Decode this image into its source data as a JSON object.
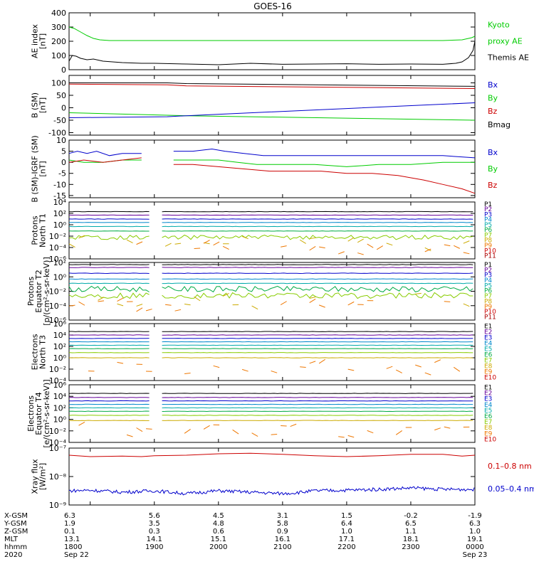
{
  "title": "GOES-16",
  "colors": {
    "black": "#000000",
    "blue": "#0000cc",
    "green": "#00cc00",
    "red": "#cc0000",
    "P": [
      "#000000",
      "#660099",
      "#0000cc",
      "#0088cc",
      "#00aaaa",
      "#00aa44",
      "#88cc00",
      "#ccaa00",
      "#ee7700",
      "#cc0000",
      "#aa0000"
    ]
  },
  "chart_data": [
    {
      "id": "ae",
      "type": "line",
      "ylabel": [
        "AE index",
        "[nT]"
      ],
      "yscale": "linear",
      "ylim": [
        0,
        400
      ],
      "yticks": [
        0,
        100,
        200,
        300,
        400
      ],
      "yticklabels": [
        "0",
        "100",
        "200",
        "300",
        "400"
      ],
      "legend": [
        {
          "text": "Kyoto",
          "color": "green"
        },
        {
          "text": "proxy AE",
          "color": "green"
        },
        {
          "text": "Themis AE",
          "color": "black"
        }
      ],
      "series": [
        {
          "name": "Kyoto proxy AE",
          "color": "green",
          "x": [
            17.67,
            17.75,
            17.85,
            17.95,
            18.05,
            18.15,
            18.3,
            18.5,
            19,
            19.5,
            20,
            20.5,
            21,
            21.5,
            22,
            22.5,
            23,
            23.5,
            23.8,
            23.95,
            24
          ],
          "y": [
            300,
            290,
            265,
            240,
            220,
            210,
            205,
            205,
            205,
            205,
            205,
            205,
            205,
            205,
            205,
            205,
            205,
            205,
            210,
            225,
            235
          ]
        },
        {
          "name": "Themis AE",
          "color": "black",
          "x": [
            17.67,
            17.72,
            17.78,
            17.85,
            17.95,
            18.05,
            18.2,
            18.35,
            18.5,
            18.8,
            19,
            19.5,
            20,
            20.5,
            21,
            21.5,
            22,
            22.5,
            23,
            23.5,
            23.7,
            23.8,
            23.9,
            23.97,
            24
          ],
          "y": [
            60,
            100,
            95,
            80,
            70,
            75,
            60,
            55,
            50,
            45,
            45,
            40,
            35,
            45,
            38,
            40,
            42,
            38,
            40,
            38,
            45,
            55,
            85,
            135,
            200
          ]
        }
      ]
    },
    {
      "id": "bsm",
      "type": "line",
      "ylabel": [
        "B (SM)",
        "[nT]"
      ],
      "yscale": "linear",
      "ylim": [
        -110,
        130
      ],
      "yticks": [
        -100,
        -50,
        0,
        50,
        100
      ],
      "yticklabels": [
        "-100",
        "-50",
        "0",
        "50",
        "100"
      ],
      "legend": [
        {
          "text": "Bx",
          "color": "blue"
        },
        {
          "text": "By",
          "color": "green"
        },
        {
          "text": "Bz",
          "color": "red"
        },
        {
          "text": "Bmag",
          "color": "black"
        }
      ],
      "series": [
        {
          "name": "Bmag",
          "color": "black",
          "x": [
            17.67,
            19.2,
            19.5,
            24
          ],
          "y": [
            100,
            100,
            97,
            86
          ]
        },
        {
          "name": "Bz",
          "color": "red",
          "x": [
            17.67,
            19.2,
            19.5,
            24
          ],
          "y": [
            95,
            92,
            88,
            77
          ]
        },
        {
          "name": "By",
          "color": "green",
          "x": [
            17.67,
            19.2,
            19.5,
            24
          ],
          "y": [
            -20,
            -30,
            -32,
            -50
          ]
        },
        {
          "name": "Bx",
          "color": "blue",
          "x": [
            17.67,
            19.2,
            19.5,
            24
          ],
          "y": [
            -40,
            -36,
            -32,
            20
          ]
        }
      ]
    },
    {
      "id": "digrf",
      "type": "line",
      "ylabel": [
        "B (SM)-IGRF (SM)",
        "[nT]"
      ],
      "yscale": "linear",
      "ylim": [
        -16,
        10
      ],
      "yticks": [
        -15,
        -10,
        -5,
        0,
        5,
        10
      ],
      "yticklabels": [
        "-15",
        "-10",
        "-5",
        "0",
        "5",
        "10"
      ],
      "legend": [
        {
          "text": "Bx",
          "color": "blue"
        },
        {
          "text": "By",
          "color": "green"
        },
        {
          "text": "Bz",
          "color": "red"
        }
      ],
      "series": [
        {
          "name": "Bx",
          "color": "blue",
          "x": [
            17.67,
            17.8,
            17.95,
            18.1,
            18.3,
            18.5,
            18.8,
            19.0,
            19.3,
            19.6,
            19.9,
            20.1,
            20.4,
            20.7,
            21,
            21.5,
            22,
            22.5,
            23,
            23.5,
            24
          ],
          "y": [
            4,
            5,
            4,
            5,
            3,
            4,
            4,
            5,
            5,
            5,
            6,
            5,
            4,
            3,
            3,
            3,
            3,
            3,
            3,
            3,
            2
          ]
        },
        {
          "name": "By",
          "color": "green",
          "x": [
            17.67,
            17.9,
            18.2,
            18.5,
            18.8,
            19.0,
            19.3,
            19.6,
            20.0,
            20.3,
            20.6,
            21,
            21.5,
            22,
            22.5,
            23,
            23.5,
            24
          ],
          "y": [
            1,
            0,
            0,
            1,
            1,
            2,
            1,
            1,
            1,
            0,
            -1,
            -1,
            -1,
            -2,
            -1,
            -1,
            0,
            0
          ]
        },
        {
          "name": "Bz",
          "color": "red",
          "x": [
            17.67,
            17.9,
            18.2,
            18.5,
            18.8,
            19.0,
            19.3,
            19.6,
            20.0,
            20.4,
            20.8,
            21.2,
            21.6,
            22,
            22.4,
            22.8,
            23.2,
            23.5,
            23.8,
            24
          ],
          "y": [
            0,
            1,
            0,
            1,
            2,
            0,
            -1,
            -1,
            -2,
            -3,
            -4,
            -4,
            -4,
            -5,
            -5,
            -6,
            -8,
            -10,
            -12,
            -14
          ]
        }
      ]
    },
    {
      "id": "pn",
      "type": "line",
      "ylabel": [
        "Protons",
        "North T1"
      ],
      "yscale": "log",
      "ylim": [
        -6,
        4
      ],
      "yticks": [
        -6,
        -4,
        -2,
        0,
        2,
        4
      ],
      "yticklabels": [
        "10⁻⁶",
        "10⁻⁴",
        "10⁻²",
        "10⁰",
        "10²",
        "10⁴"
      ],
      "legend": [
        {
          "text": "P1",
          "color": "P1"
        },
        {
          "text": "P2",
          "color": "P2"
        },
        {
          "text": "P3",
          "color": "P3"
        },
        {
          "text": "P4",
          "color": "P4"
        },
        {
          "text": "P5",
          "color": "P5"
        },
        {
          "text": "P6",
          "color": "P6"
        },
        {
          "text": "P7",
          "color": "P7"
        },
        {
          "text": "P8",
          "color": "P8"
        },
        {
          "text": "P9",
          "color": "P9"
        },
        {
          "text": "P10",
          "color": "P10"
        },
        {
          "text": "P11",
          "color": "P11"
        }
      ],
      "series": [
        {
          "name": "P1",
          "color": "P1",
          "y": 2.3
        },
        {
          "name": "P2",
          "color": "P2",
          "y": 1.7
        },
        {
          "name": "P3",
          "color": "P3",
          "y": 1.0
        },
        {
          "name": "P4",
          "color": "P4",
          "y": 0.4
        },
        {
          "name": "P5",
          "color": "P5",
          "y": -0.3
        },
        {
          "name": "P6",
          "color": "P6",
          "y": -1.1
        },
        {
          "name": "P7",
          "color": "P7",
          "y": -2.2,
          "noisy": true
        },
        {
          "name": "P8",
          "color": "P8",
          "y": -3.1,
          "sparse": true
        },
        {
          "name": "P9",
          "color": "P9",
          "y": -4.2,
          "sparse": true
        }
      ]
    },
    {
      "id": "pe",
      "type": "line",
      "ylabel": [
        "Protons",
        "Equator T2",
        "[p/(cm²-s-sr-keV)]"
      ],
      "yscale": "log",
      "ylim": [
        -6,
        2
      ],
      "yticks": [
        -6,
        -4,
        -2,
        0,
        2
      ],
      "yticklabels": [
        "10⁻⁶",
        "10⁻⁴",
        "10⁻²",
        "10⁰",
        "10²"
      ],
      "legend": [
        {
          "text": "P1",
          "color": "P1"
        },
        {
          "text": "P2",
          "color": "P2"
        },
        {
          "text": "P3",
          "color": "P3"
        },
        {
          "text": "P4",
          "color": "P4"
        },
        {
          "text": "P5",
          "color": "P5"
        },
        {
          "text": "P6",
          "color": "P6"
        },
        {
          "text": "P7",
          "color": "P7"
        },
        {
          "text": "P8",
          "color": "P8"
        },
        {
          "text": "P9",
          "color": "P9"
        },
        {
          "text": "P10",
          "color": "P10"
        },
        {
          "text": "P11",
          "color": "P11"
        }
      ],
      "series": [
        {
          "name": "P1",
          "color": "P1",
          "y": 1.7
        },
        {
          "name": "P2",
          "color": "P2",
          "y": 1.3
        },
        {
          "name": "P3",
          "color": "P3",
          "y": 0.5
        },
        {
          "name": "P4",
          "color": "P4",
          "y": -0.3
        },
        {
          "name": "P5",
          "color": "P5",
          "y": -0.9
        },
        {
          "name": "P6",
          "color": "P6",
          "y": -1.7,
          "noisy": true
        },
        {
          "name": "P7",
          "color": "P7",
          "y": -2.6,
          "noisy": true
        },
        {
          "name": "P8",
          "color": "P8",
          "y": -3.2,
          "sparse": true
        },
        {
          "name": "P9",
          "color": "P9",
          "y": -4.1,
          "sparse": true
        }
      ]
    },
    {
      "id": "en",
      "type": "line",
      "ylabel": [
        "Electrons",
        "North T3"
      ],
      "yscale": "log",
      "ylim": [
        -4,
        6
      ],
      "yticks": [
        -4,
        -2,
        0,
        2,
        4,
        6
      ],
      "yticklabels": [
        "10⁻⁴",
        "10⁻²",
        "10⁰",
        "10²",
        "10⁴",
        "10⁶"
      ],
      "legend": [
        {
          "text": "E1",
          "color": "P1"
        },
        {
          "text": "E2",
          "color": "P2"
        },
        {
          "text": "E3",
          "color": "P3"
        },
        {
          "text": "E4",
          "color": "P4"
        },
        {
          "text": "E5",
          "color": "P5"
        },
        {
          "text": "E6",
          "color": "P6"
        },
        {
          "text": "E7",
          "color": "P7"
        },
        {
          "text": "E8",
          "color": "P8"
        },
        {
          "text": "E9",
          "color": "P9"
        },
        {
          "text": "E10",
          "color": "P10"
        }
      ],
      "series": [
        {
          "name": "E1",
          "color": "P1",
          "y": 4.6
        },
        {
          "name": "E2",
          "color": "P2",
          "y": 4.0
        },
        {
          "name": "E3",
          "color": "P3",
          "y": 3.4
        },
        {
          "name": "E4",
          "color": "P4",
          "y": 2.8
        },
        {
          "name": "E5",
          "color": "P5",
          "y": 2.2
        },
        {
          "name": "E6",
          "color": "P6",
          "y": 1.6
        },
        {
          "name": "E7",
          "color": "P7",
          "y": 0.9
        },
        {
          "name": "E8",
          "color": "P8",
          "y": 0.0
        },
        {
          "name": "E9",
          "color": "P9",
          "y": -1.8,
          "sparse": true
        }
      ]
    },
    {
      "id": "ee",
      "type": "line",
      "ylabel": [
        "Electrons",
        "Equator T4",
        "[e/(cm²-s-sr-keV)]"
      ],
      "yscale": "log",
      "ylim": [
        -4,
        6
      ],
      "yticks": [
        -4,
        -2,
        0,
        2,
        4,
        6
      ],
      "yticklabels": [
        "10⁻⁴",
        "10⁻²",
        "10⁰",
        "10²",
        "10⁴",
        "10⁶"
      ],
      "legend": [
        {
          "text": "E1",
          "color": "P1"
        },
        {
          "text": "E2",
          "color": "P2"
        },
        {
          "text": "E3",
          "color": "P3"
        },
        {
          "text": "E4",
          "color": "P4"
        },
        {
          "text": "E5",
          "color": "P5"
        },
        {
          "text": "E6",
          "color": "P6"
        },
        {
          "text": "E7",
          "color": "P7"
        },
        {
          "text": "E8",
          "color": "P8"
        },
        {
          "text": "E9",
          "color": "P9"
        },
        {
          "text": "E10",
          "color": "P10"
        }
      ],
      "series": [
        {
          "name": "E1",
          "color": "P1",
          "y": 4.5
        },
        {
          "name": "E2",
          "color": "P2",
          "y": 3.8
        },
        {
          "name": "E3",
          "color": "P3",
          "y": 3.2
        },
        {
          "name": "E4",
          "color": "P4",
          "y": 2.6
        },
        {
          "name": "E5",
          "color": "P5",
          "y": 2.0
        },
        {
          "name": "E6",
          "color": "P6",
          "y": 1.4
        },
        {
          "name": "E7",
          "color": "P7",
          "y": 0.7
        },
        {
          "name": "E8",
          "color": "P8",
          "y": -0.2
        },
        {
          "name": "E9",
          "color": "P9",
          "y": -1.9,
          "sparse": true
        }
      ]
    },
    {
      "id": "xray",
      "type": "line",
      "ylabel": [
        "Xray flux",
        "[W/m²]"
      ],
      "yscale": "log",
      "ylim": [
        -9,
        -7
      ],
      "yticks": [
        -9,
        -8,
        -7
      ],
      "yticklabels": [
        "10⁻⁹",
        "10⁻⁸",
        "10⁻⁷"
      ],
      "legend": [
        {
          "text": "0.1–0.8 nm",
          "color": "red"
        },
        {
          "text": "0.05–0.4 nm",
          "color": "blue"
        }
      ],
      "series": [
        {
          "name": "0.1–0.8 nm",
          "color": "red",
          "x": [
            17.67,
            18.0,
            18.5,
            18.8,
            19.0,
            19.5,
            20.0,
            20.5,
            21,
            21.5,
            22,
            22.5,
            23,
            23.5,
            23.8,
            24
          ],
          "y": [
            -7.25,
            -7.3,
            -7.28,
            -7.3,
            -7.27,
            -7.25,
            -7.2,
            -7.18,
            -7.22,
            -7.27,
            -7.3,
            -7.27,
            -7.22,
            -7.22,
            -7.28,
            -7.25
          ]
        },
        {
          "name": "0.05–0.4 nm",
          "color": "blue",
          "x": [
            17.67,
            18.0,
            18.5,
            19.0,
            19.5,
            20.0,
            20.5,
            21.0,
            21.3,
            21.5,
            22,
            22.5,
            23,
            23.5,
            24
          ],
          "y": [
            -8.5,
            -8.48,
            -8.55,
            -8.5,
            -8.6,
            -8.5,
            -8.55,
            -8.6,
            -8.55,
            -8.5,
            -8.48,
            -8.45,
            -8.4,
            -8.45,
            -8.45
          ],
          "noisy": true
        }
      ]
    }
  ],
  "xaxis": {
    "xlim": [
      17.67,
      24
    ],
    "tick_hours": [
      18,
      19,
      20,
      21,
      22,
      23,
      24
    ],
    "rows": [
      {
        "label": "X-GSM",
        "values": [
          "6.3",
          "5.6",
          "4.5",
          "3.1",
          "1.5",
          "-0.2",
          "-1.9"
        ],
        "first_value_at_start": true
      },
      {
        "label": "Y-GSM",
        "values": [
          "1.9",
          "3.5",
          "4.8",
          "5.8",
          "6.4",
          "6.5",
          "6.3"
        ],
        "first_value_at_start": true
      },
      {
        "label": "Z-GSM",
        "values": [
          "0.1",
          "0.3",
          "0.6",
          "0.9",
          "1.0",
          "1.1",
          "1.0"
        ],
        "first_value_at_start": true
      },
      {
        "label": "MLT",
        "values": [
          "13.1",
          "14.1",
          "15.1",
          "16.1",
          "17.1",
          "18.1",
          "19.1"
        ],
        "first_value_at_start": true
      },
      {
        "label": "hhmm",
        "values": [
          "1800",
          "1900",
          "2000",
          "2100",
          "2200",
          "2300",
          "0000"
        ]
      },
      {
        "label": "2020",
        "values": [
          "Sep 22",
          "",
          "",
          "",
          "",
          "",
          "Sep 23"
        ]
      }
    ]
  }
}
